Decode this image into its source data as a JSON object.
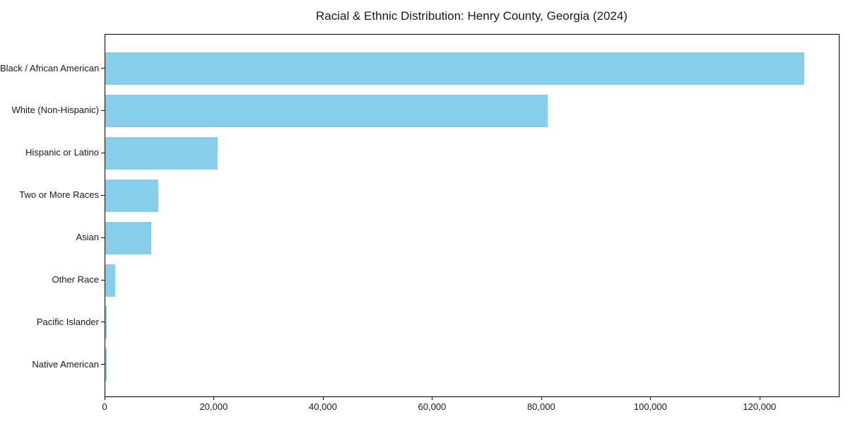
{
  "chart_data": {
    "type": "bar",
    "orientation": "horizontal",
    "title": "Racial & Ethnic Distribution: Henry County, Georgia (2024)",
    "categories": [
      "Black / African American",
      "White (Non-Hispanic)",
      "Hispanic or Latino",
      "Two or More Races",
      "Asian",
      "Other Race",
      "Pacific Islander",
      "Native American"
    ],
    "values": [
      128000,
      81000,
      20600,
      9700,
      8400,
      1800,
      250,
      200
    ],
    "xlabel": "",
    "ylabel": "",
    "xlim": [
      0,
      134400
    ],
    "xticks": [
      0,
      20000,
      40000,
      60000,
      80000,
      100000,
      120000
    ],
    "xtick_labels": [
      "0",
      "20,000",
      "40,000",
      "60,000",
      "80,000",
      "100,000",
      "120,000"
    ],
    "bar_color": "#87CEEB",
    "grid": false,
    "legend": "none"
  }
}
